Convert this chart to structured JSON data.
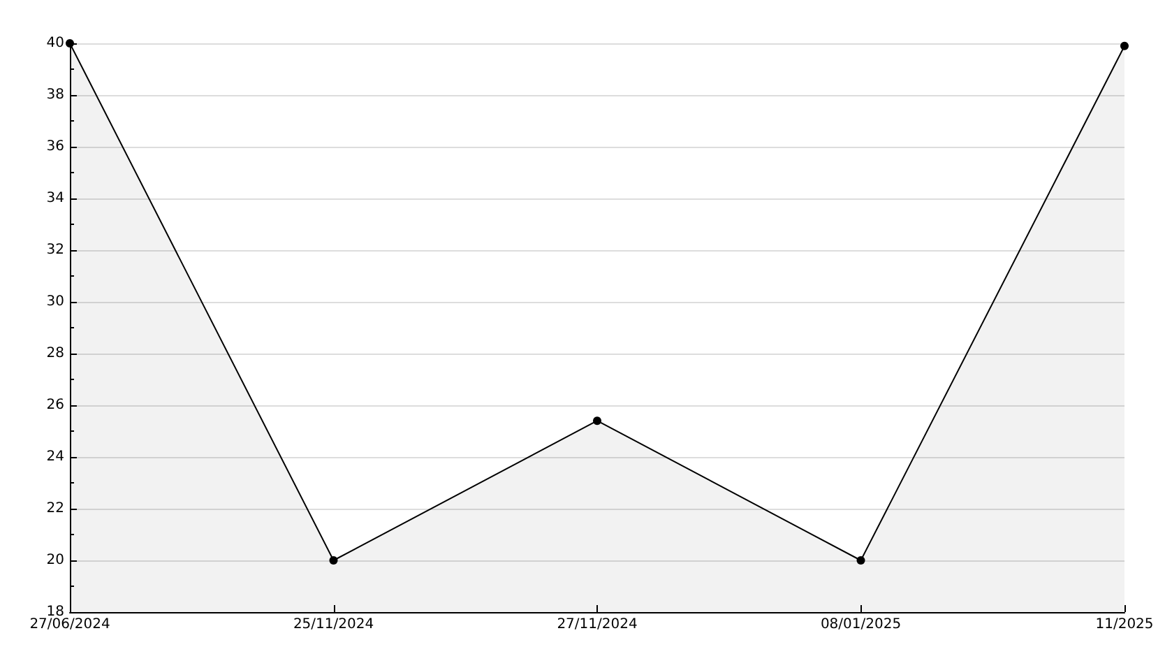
{
  "chart_data": {
    "type": "area",
    "categories": [
      "27/06/2024",
      "25/11/2024",
      "27/11/2024",
      "08/01/2025",
      "11/2025"
    ],
    "series": [
      {
        "color": "#000000",
        "values": [
          40,
          20,
          25.4,
          20,
          39.9
        ]
      }
    ],
    "ylim": [
      18,
      40
    ],
    "yticks": [
      18,
      20,
      22,
      24,
      26,
      28,
      30,
      32,
      34,
      36,
      38,
      40
    ],
    "grid": "y",
    "marker": "circle",
    "line_style": "solid"
  }
}
